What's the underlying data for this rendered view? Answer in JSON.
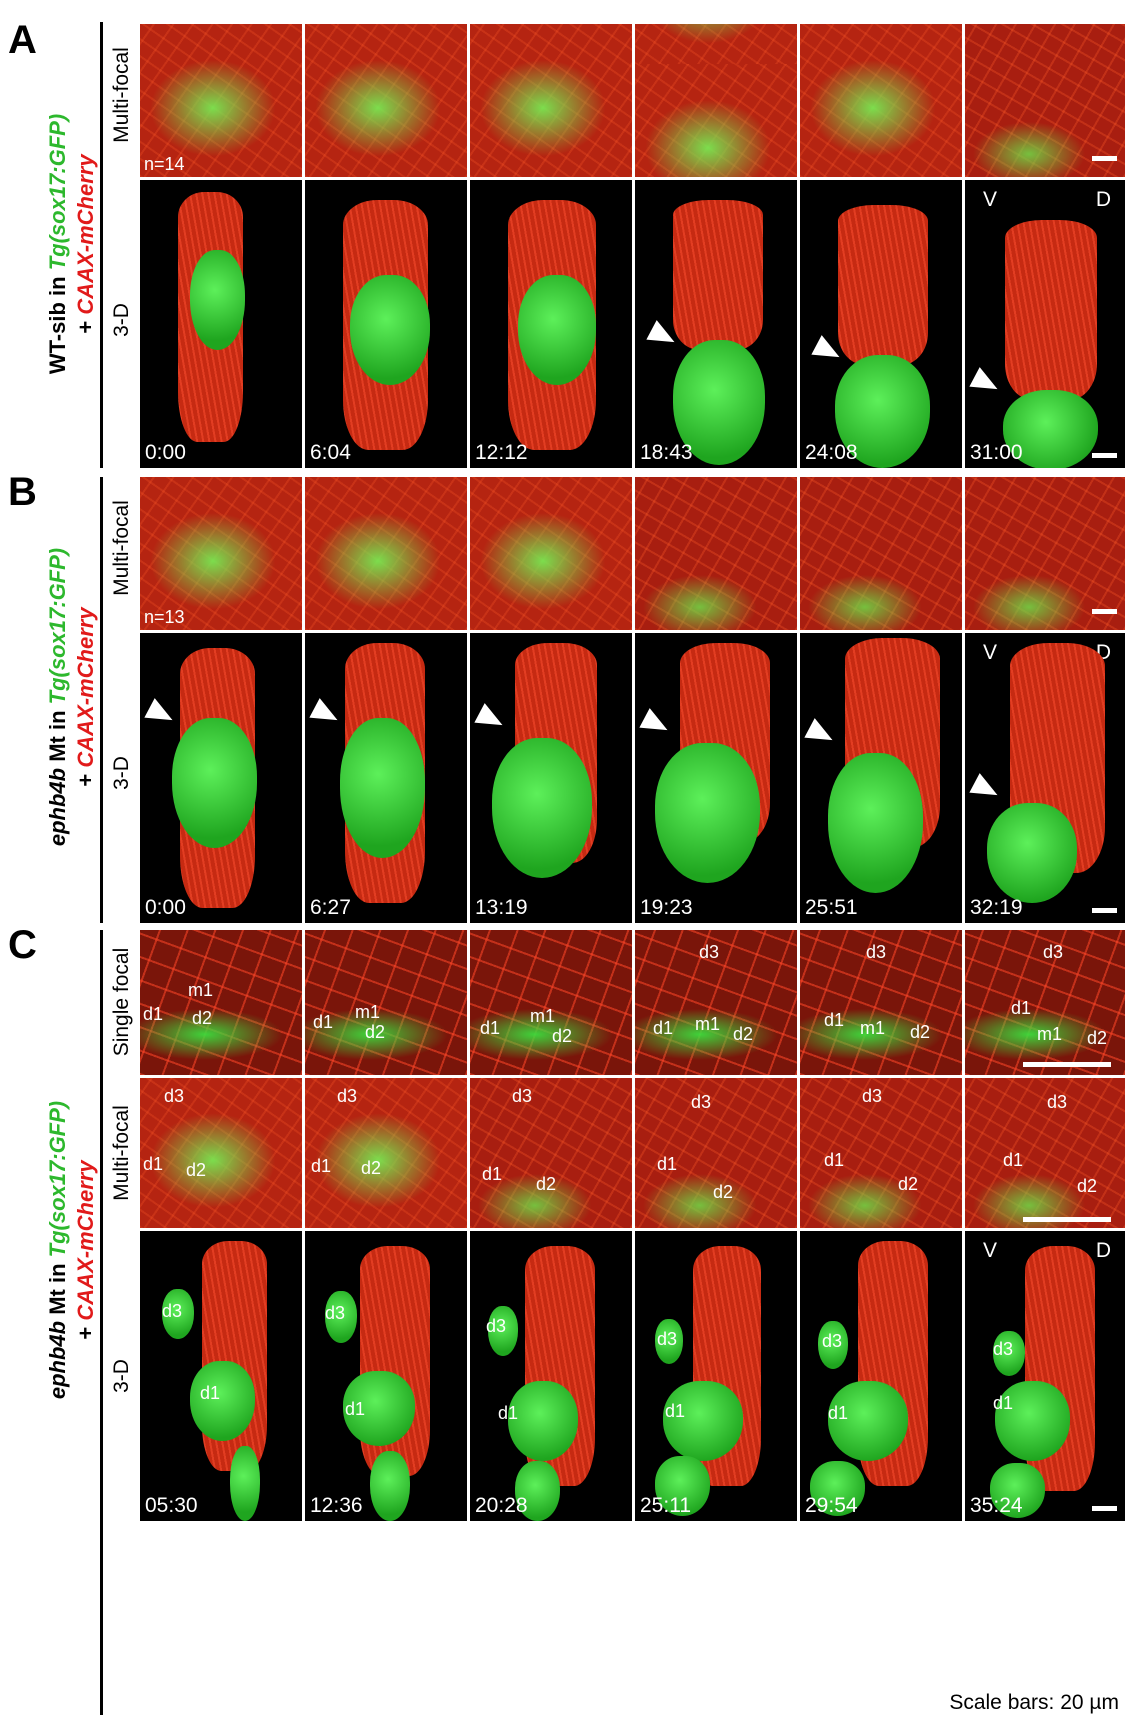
{
  "panels": [
    {
      "letter": "A",
      "side_label": {
        "p1": "WT-sib in ",
        "p2": "Tg(sox17:GFP)",
        "p3": "+ ",
        "p4": "CAAX-mCherry"
      },
      "rows": [
        {
          "label": "Multi-focal",
          "n": "n=14"
        },
        {
          "label": "3-D"
        }
      ],
      "times": [
        "0:00",
        "6:04",
        "12:12",
        "18:43",
        "24:08",
        "31:00"
      ]
    },
    {
      "letter": "B",
      "side_label": {
        "p0": "ephb4b",
        "p1": " Mt in ",
        "p2": "Tg(sox17:GFP)",
        "p3": "+ ",
        "p4": "CAAX-mCherry"
      },
      "rows": [
        {
          "label": "Multi-focal",
          "n": "n=13"
        },
        {
          "label": "3-D"
        }
      ],
      "times": [
        "0:00",
        "6:27",
        "13:19",
        "19:23",
        "25:51",
        "32:19"
      ]
    },
    {
      "letter": "C",
      "side_label": {
        "p0": "ephb4b",
        "p1": " Mt in ",
        "p2": "Tg(sox17:GFP)",
        "p3": "+ ",
        "p4": "CAAX-mCherry"
      },
      "rows": [
        {
          "label": "Single focal"
        },
        {
          "label": "Multi-focal"
        },
        {
          "label": "3-D"
        }
      ],
      "times": [
        "05:30",
        "12:36",
        "20:28",
        "25:11",
        "29:54",
        "35:24"
      ],
      "cell_labels": {
        "d1": "d1",
        "d2": "d2",
        "d3": "d3",
        "m1": "m1"
      }
    }
  ],
  "orientation": {
    "v": "V",
    "d": "D"
  },
  "footer": "Scale bars: 20 µm"
}
